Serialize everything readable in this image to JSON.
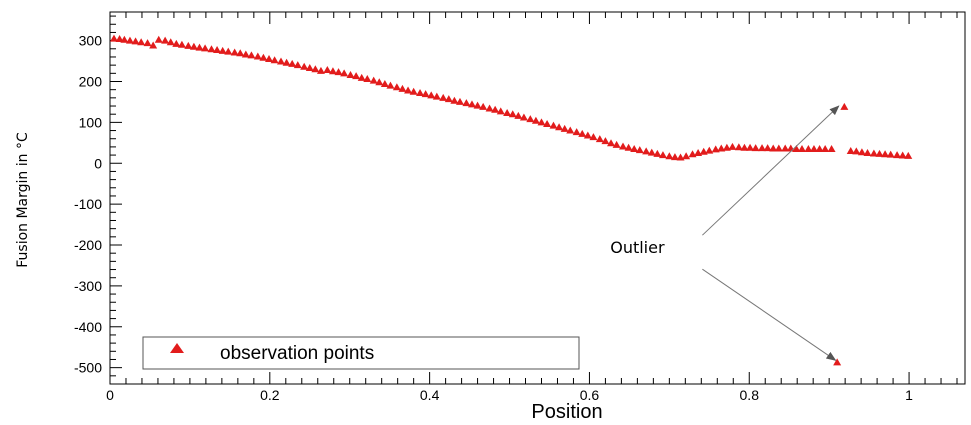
{
  "chart_data": {
    "type": "scatter",
    "title": "",
    "xlabel": "Position",
    "ylabel": "Fusion Margin in °C",
    "xlim": [
      0,
      1.07
    ],
    "ylim": [
      -540,
      370
    ],
    "xticks": [
      0,
      0.2,
      0.4,
      0.6,
      0.8,
      1
    ],
    "xtick_labels": [
      "0",
      "0.2",
      "0.4",
      "0.6",
      "0.8",
      "1"
    ],
    "yticks": [
      300,
      200,
      100,
      0,
      -100,
      -200,
      -300,
      -400,
      -500
    ],
    "ytick_labels": [
      "300",
      "200",
      "100",
      "0",
      "-100",
      "-200",
      "-300",
      "-400",
      "-500"
    ],
    "grid": false,
    "legend_position": "bottom-left",
    "series": [
      {
        "name": "observation points",
        "marker": "triangle",
        "color": "#e21c1c",
        "points": [
          [
            0.005,
            305
          ],
          [
            0.012,
            304
          ],
          [
            0.018,
            302
          ],
          [
            0.025,
            300
          ],
          [
            0.032,
            298
          ],
          [
            0.039,
            296
          ],
          [
            0.047,
            294
          ],
          [
            0.054,
            288
          ],
          [
            0.061,
            302
          ],
          [
            0.069,
            300
          ],
          [
            0.076,
            296
          ],
          [
            0.083,
            292
          ],
          [
            0.09,
            290
          ],
          [
            0.098,
            287
          ],
          [
            0.105,
            285
          ],
          [
            0.112,
            283
          ],
          [
            0.119,
            281
          ],
          [
            0.127,
            279
          ],
          [
            0.134,
            277
          ],
          [
            0.141,
            275
          ],
          [
            0.148,
            273
          ],
          [
            0.156,
            271
          ],
          [
            0.163,
            269
          ],
          [
            0.17,
            266
          ],
          [
            0.177,
            264
          ],
          [
            0.185,
            261
          ],
          [
            0.192,
            258
          ],
          [
            0.199,
            255
          ],
          [
            0.206,
            252
          ],
          [
            0.214,
            249
          ],
          [
            0.221,
            246
          ],
          [
            0.228,
            243
          ],
          [
            0.235,
            240
          ],
          [
            0.243,
            236
          ],
          [
            0.25,
            233
          ],
          [
            0.257,
            230
          ],
          [
            0.264,
            226
          ],
          [
            0.272,
            228
          ],
          [
            0.279,
            225
          ],
          [
            0.286,
            223
          ],
          [
            0.293,
            220
          ],
          [
            0.301,
            216
          ],
          [
            0.308,
            213
          ],
          [
            0.315,
            209
          ],
          [
            0.322,
            206
          ],
          [
            0.33,
            202
          ],
          [
            0.337,
            198
          ],
          [
            0.344,
            194
          ],
          [
            0.351,
            190
          ],
          [
            0.359,
            186
          ],
          [
            0.366,
            182
          ],
          [
            0.373,
            178
          ],
          [
            0.38,
            175
          ],
          [
            0.388,
            172
          ],
          [
            0.395,
            169
          ],
          [
            0.402,
            166
          ],
          [
            0.409,
            163
          ],
          [
            0.417,
            160
          ],
          [
            0.424,
            157
          ],
          [
            0.431,
            153
          ],
          [
            0.438,
            150
          ],
          [
            0.446,
            147
          ],
          [
            0.453,
            144
          ],
          [
            0.46,
            141
          ],
          [
            0.467,
            138
          ],
          [
            0.475,
            134
          ],
          [
            0.482,
            131
          ],
          [
            0.489,
            127
          ],
          [
            0.497,
            123
          ],
          [
            0.504,
            120
          ],
          [
            0.511,
            116
          ],
          [
            0.518,
            112
          ],
          [
            0.526,
            108
          ],
          [
            0.533,
            104
          ],
          [
            0.54,
            100
          ],
          [
            0.547,
            96
          ],
          [
            0.555,
            92
          ],
          [
            0.562,
            88
          ],
          [
            0.569,
            84
          ],
          [
            0.576,
            80
          ],
          [
            0.584,
            76
          ],
          [
            0.591,
            72
          ],
          [
            0.598,
            68
          ],
          [
            0.605,
            64
          ],
          [
            0.613,
            59
          ],
          [
            0.62,
            54
          ],
          [
            0.627,
            49
          ],
          [
            0.634,
            45
          ],
          [
            0.642,
            41
          ],
          [
            0.649,
            38
          ],
          [
            0.656,
            35
          ],
          [
            0.663,
            32
          ],
          [
            0.671,
            29
          ],
          [
            0.678,
            26
          ],
          [
            0.685,
            23
          ],
          [
            0.692,
            20
          ],
          [
            0.7,
            17
          ],
          [
            0.707,
            15
          ],
          [
            0.714,
            14
          ],
          [
            0.721,
            17
          ],
          [
            0.729,
            22
          ],
          [
            0.736,
            25
          ],
          [
            0.743,
            28
          ],
          [
            0.75,
            31
          ],
          [
            0.758,
            34
          ],
          [
            0.765,
            36
          ],
          [
            0.772,
            38
          ],
          [
            0.779,
            40
          ],
          [
            0.787,
            39
          ],
          [
            0.794,
            38
          ],
          [
            0.801,
            38
          ],
          [
            0.808,
            37
          ],
          [
            0.816,
            37
          ],
          [
            0.823,
            37
          ],
          [
            0.83,
            36
          ],
          [
            0.837,
            36
          ],
          [
            0.845,
            36
          ],
          [
            0.852,
            36
          ],
          [
            0.859,
            35
          ],
          [
            0.866,
            35
          ],
          [
            0.874,
            35
          ],
          [
            0.881,
            35
          ],
          [
            0.888,
            35
          ],
          [
            0.895,
            35
          ],
          [
            0.903,
            35
          ],
          [
            0.919,
            138
          ],
          [
            0.91,
            -487
          ],
          [
            0.927,
            30
          ],
          [
            0.934,
            29
          ],
          [
            0.941,
            27
          ],
          [
            0.948,
            25
          ],
          [
            0.956,
            24
          ],
          [
            0.963,
            23
          ],
          [
            0.97,
            22
          ],
          [
            0.977,
            21
          ],
          [
            0.985,
            20
          ],
          [
            0.992,
            19
          ],
          [
            0.999,
            18
          ]
        ]
      }
    ],
    "annotations": [
      {
        "text": "Outlier",
        "anchor": [
          0.66,
          -220
        ],
        "arrows_to": [
          [
            0.912,
            140
          ],
          [
            0.908,
            -482
          ]
        ]
      }
    ]
  }
}
